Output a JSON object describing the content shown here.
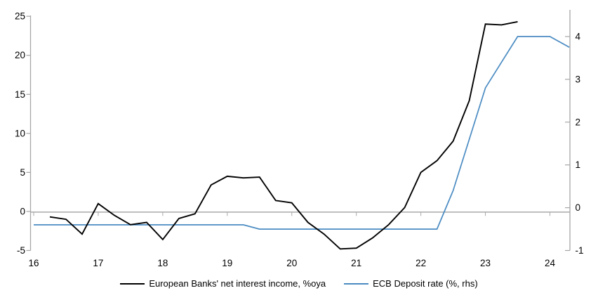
{
  "chart_data": {
    "type": "line",
    "title": "",
    "x_axis": {
      "ticks": [
        16,
        17,
        18,
        19,
        20,
        21,
        22,
        23,
        24
      ],
      "tick_labels": [
        "16",
        "17",
        "18",
        "19",
        "20",
        "21",
        "22",
        "23",
        "24"
      ],
      "range": [
        16,
        24.31
      ]
    },
    "left_axis": {
      "label": "",
      "ticks": [
        -5,
        0,
        5,
        10,
        15,
        20,
        25
      ],
      "tick_labels": [
        "-5",
        "0",
        "5",
        "10",
        "15",
        "20",
        "25"
      ],
      "range": [
        -5,
        25.06
      ],
      "grid": "zero-line-only"
    },
    "right_axis": {
      "label": "",
      "ticks": [
        -1,
        0,
        1,
        2,
        3,
        4
      ],
      "tick_labels": [
        "-1",
        "0",
        "1",
        "2",
        "3",
        "4"
      ],
      "range": [
        -1,
        4.485
      ]
    },
    "legend_position": "bottom-center",
    "series": [
      {
        "name": "European Banks' net interest income, %oya",
        "axis": "left",
        "color": "#000000",
        "stroke_width": 1.9,
        "x": [
          16.25,
          16.5,
          16.75,
          17,
          17.25,
          17.5,
          17.75,
          18,
          18.25,
          18.5,
          18.75,
          19,
          19.25,
          19.5,
          19.75,
          20,
          20.25,
          20.5,
          20.75,
          21,
          21.25,
          21.5,
          21.75,
          22,
          22.25,
          22.5,
          22.75,
          23,
          23.25,
          23.5
        ],
        "values": [
          -0.7,
          -1,
          -2.9,
          1,
          -0.5,
          -1.7,
          -1.4,
          -3.6,
          -0.9,
          -0.3,
          3.4,
          4.5,
          4.3,
          4.4,
          1.4,
          1.1,
          -1.4,
          -2.9,
          -4.8,
          -4.7,
          -3.4,
          -1.7,
          0.5,
          5,
          6.5,
          9,
          14.2,
          24,
          23.9,
          24.3
        ]
      },
      {
        "name": "ECB Deposit rate (%, rhs)",
        "axis": "right",
        "color": "#4a8bc2",
        "stroke_width": 1.7,
        "x": [
          16,
          16.25,
          16.5,
          16.75,
          17,
          17.25,
          17.5,
          17.75,
          18,
          18.25,
          18.5,
          18.75,
          19,
          19.25,
          19.5,
          19.75,
          20,
          20.25,
          20.5,
          20.75,
          21,
          21.25,
          21.5,
          21.75,
          22,
          22.25,
          22.5,
          22.75,
          23,
          23.25,
          23.5,
          23.75,
          24,
          24.3
        ],
        "values": [
          -0.4,
          -0.4,
          -0.4,
          -0.4,
          -0.4,
          -0.4,
          -0.4,
          -0.4,
          -0.4,
          -0.4,
          -0.4,
          -0.4,
          -0.4,
          -0.4,
          -0.5,
          -0.5,
          -0.5,
          -0.5,
          -0.5,
          -0.5,
          -0.5,
          -0.5,
          -0.5,
          -0.5,
          -0.5,
          -0.5,
          0.4,
          1.6,
          2.8,
          3.4,
          4,
          4,
          4,
          3.75
        ]
      }
    ],
    "colors": {
      "zero_line": "#a9a9a9",
      "axis": "#a6a6a6",
      "tick_text": "#000000"
    }
  }
}
